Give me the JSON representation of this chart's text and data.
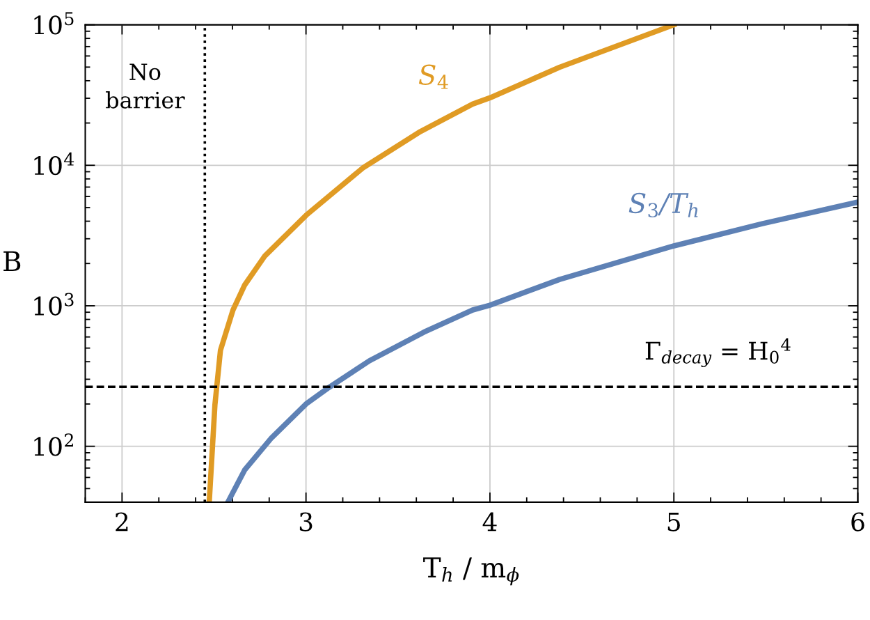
{
  "chart_data": {
    "type": "line",
    "xlabel": "T$_{h}$ / m$_{ϕ}$",
    "ylabel": "B",
    "log": "y",
    "xlim": [
      1.8,
      6
    ],
    "xticks": [
      2,
      3,
      4,
      5,
      6
    ],
    "ylim": [
      40,
      100000
    ],
    "yticks": [
      {
        "value": 100,
        "label": "10$^{2}$"
      },
      {
        "value": 1000,
        "label": "10$^{3}$"
      },
      {
        "value": 10000,
        "label": "10$^{4}$"
      },
      {
        "value": 100000,
        "label": "10$^{5}$"
      }
    ],
    "grid": true,
    "legend": false,
    "marker": "none",
    "line_style": "solid",
    "series": [
      {
        "name": "S$_{4}$",
        "color": "#e09b24",
        "x": [
          2.474,
          2.505,
          2.535,
          2.603,
          2.667,
          2.777,
          3.0,
          3.308,
          3.622,
          3.906,
          4.0,
          4.379,
          5.0
        ],
        "values": [
          40,
          198,
          482,
          933,
          1408,
          2270,
          4400,
          9550,
          17400,
          27300,
          30200,
          49900,
          100000
        ]
      },
      {
        "name": "S$_{3}$/T$_{h}$",
        "color": "#5e81b5",
        "x": [
          2.575,
          2.667,
          2.813,
          3.0,
          3.126,
          3.345,
          3.641,
          3.906,
          4.0,
          4.379,
          5.0,
          5.48,
          6.0
        ],
        "values": [
          40,
          68,
          115,
          200,
          263,
          406,
          649,
          933,
          1010,
          1540,
          2670,
          3840,
          5470
        ]
      }
    ],
    "ref_lines": [
      {
        "axis": "x",
        "value": 2.45,
        "label": "No\nbarrier",
        "color": "#000000",
        "line_style": "dotted"
      },
      {
        "axis": "y",
        "value": 265,
        "label": "Γ$_{decay}$ = H$_{0}$$^{4}$",
        "color": "#000000",
        "line_style": "dashed"
      }
    ]
  }
}
